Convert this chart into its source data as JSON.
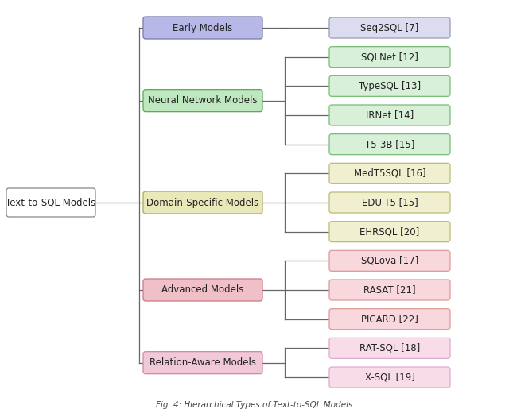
{
  "root": {
    "label": "Text-to-SQL Models",
    "color": "#ffffff",
    "edge_color": "#888888"
  },
  "categories": [
    {
      "label": "Early Models",
      "color": "#b8b8e8",
      "edge_color": "#7777aa",
      "children": [
        {
          "label": "Seq2SQL [7]",
          "color": "#dcdcf0",
          "edge_color": "#9999bb"
        }
      ]
    },
    {
      "label": "Neural Network Models",
      "color": "#c0e8c0",
      "edge_color": "#55aa55",
      "children": [
        {
          "label": "SQLNet [12]",
          "color": "#d8f0d8",
          "edge_color": "#77bb77"
        },
        {
          "label": "TypeSQL [13]",
          "color": "#d8f0d8",
          "edge_color": "#77bb77"
        },
        {
          "label": "IRNet [14]",
          "color": "#d8f0d8",
          "edge_color": "#77bb77"
        },
        {
          "label": "T5-3B [15]",
          "color": "#d8f0d8",
          "edge_color": "#77bb77"
        }
      ]
    },
    {
      "label": "Domain-Specific Models",
      "color": "#e8e8b8",
      "edge_color": "#aaaa55",
      "children": [
        {
          "label": "MedT5SQL [16]",
          "color": "#f0f0d0",
          "edge_color": "#bbbb77"
        },
        {
          "label": "EDU-T5 [15]",
          "color": "#f0f0d0",
          "edge_color": "#bbbb77"
        },
        {
          "label": "EHRSQL [20]",
          "color": "#f0f0d0",
          "edge_color": "#bbbb77"
        }
      ]
    },
    {
      "label": "Advanced Models",
      "color": "#f0c0c8",
      "edge_color": "#cc7788",
      "children": [
        {
          "label": "SQLova [17]",
          "color": "#f8d8dc",
          "edge_color": "#dd9999"
        },
        {
          "label": "RASAT [21]",
          "color": "#f8d8dc",
          "edge_color": "#dd9999"
        },
        {
          "label": "PICARD [22]",
          "color": "#f8d8dc",
          "edge_color": "#dd9999"
        }
      ]
    },
    {
      "label": "Relation-Aware Models",
      "color": "#f0c8d8",
      "edge_color": "#cc88aa",
      "children": [
        {
          "label": "RAT-SQL [18]",
          "color": "#f8dce8",
          "edge_color": "#ddaacc"
        },
        {
          "label": "X-SQL [19]",
          "color": "#f8dce8",
          "edge_color": "#ddaacc"
        }
      ]
    }
  ],
  "background_color": "#ffffff",
  "line_color": "#666666",
  "font_size": 8.5,
  "caption": "Fig. 4: Hierarchical Types of Text-to-SQL Models"
}
